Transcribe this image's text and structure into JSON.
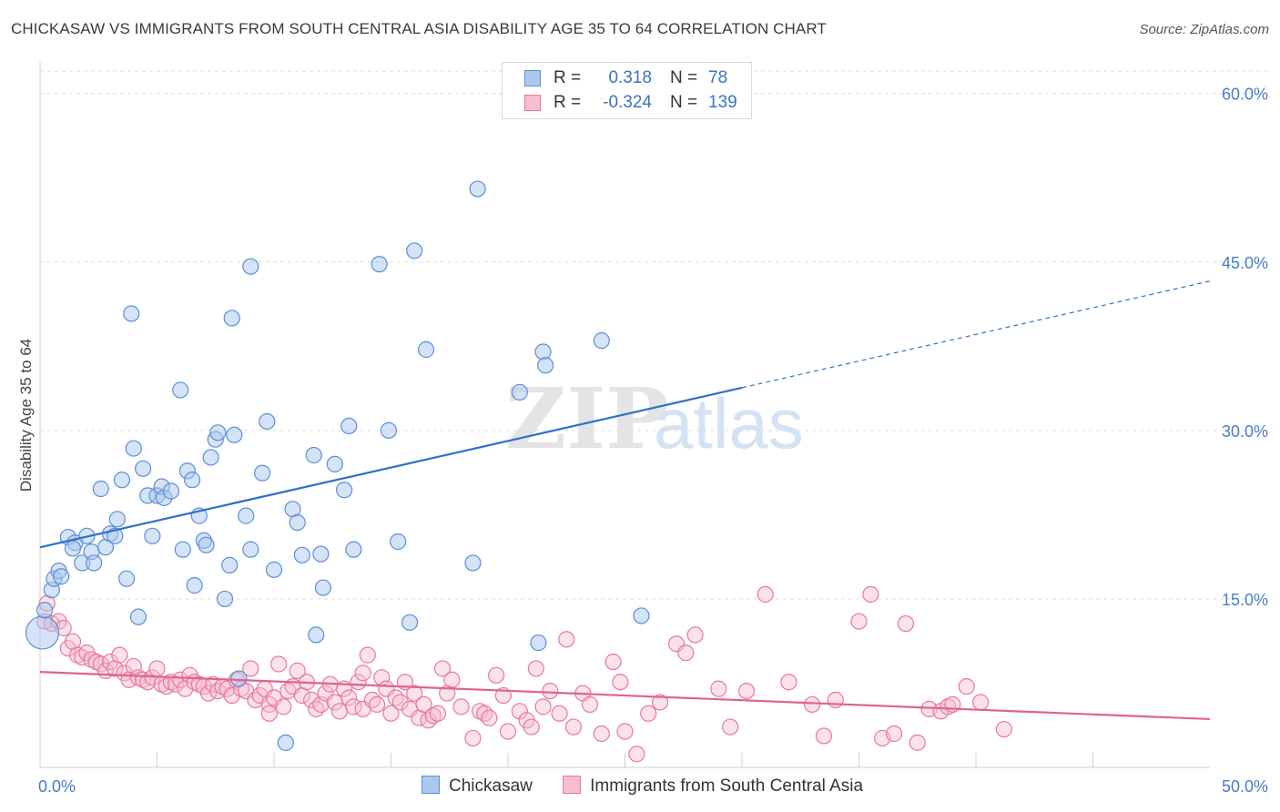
{
  "header": {
    "title": "CHICKASAW VS IMMIGRANTS FROM SOUTH CENTRAL ASIA DISABILITY AGE 35 TO 64 CORRELATION CHART",
    "source": "Source: ZipAtlas.com"
  },
  "watermark": {
    "zip": "ZIP",
    "atlas": "atlas"
  },
  "legend": {
    "rows": [
      {
        "r_label": "R =",
        "r_value": "0.318",
        "n_label": "N =",
        "n_value": "78"
      },
      {
        "r_label": "R =",
        "r_value": "-0.324",
        "n_label": "N =",
        "n_value": "139"
      }
    ]
  },
  "bottom_legend": {
    "series_a": "Chickasaw",
    "series_b": "Immigrants from South Central Asia"
  },
  "colors": {
    "blue_fill": "#aac8ee",
    "blue_stroke": "#5b8fd6",
    "blue_line": "#2f6fcc",
    "pink_fill": "#f6bcd0",
    "pink_stroke": "#e8789c",
    "pink_line": "#e0628e",
    "grid": "#dcdcdc",
    "axis_text": "#4a7cc6"
  },
  "chart_data": {
    "type": "scatter",
    "title": "CHICKASAW VS IMMIGRANTS FROM SOUTH CENTRAL ASIA DISABILITY AGE 35 TO 64 CORRELATION CHART",
    "xlabel": "",
    "ylabel": "Disability Age 35 to 64",
    "xlim": [
      0,
      50
    ],
    "ylim": [
      0,
      62
    ],
    "x_tick_labels": [
      "0.0%",
      "50.0%"
    ],
    "y_ticks": [
      15,
      30,
      45,
      60
    ],
    "y_tick_labels": [
      "15.0%",
      "30.0%",
      "45.0%",
      "60.0%"
    ],
    "grid": true,
    "legend_position": "top-center",
    "series": [
      {
        "name": "Chickasaw",
        "r": 0.318,
        "n": 78,
        "trend": {
          "x0": 0,
          "y0": 19.6,
          "x1": 30,
          "y1": 33.8,
          "dashed_to_x": 50,
          "dashed_to_y": 43.3
        },
        "points": [
          [
            0.1,
            12.0
          ],
          [
            0.5,
            15.8
          ],
          [
            0.6,
            16.8
          ],
          [
            0.8,
            17.5
          ],
          [
            0.9,
            17.0
          ],
          [
            1.2,
            20.5
          ],
          [
            1.5,
            20.0
          ],
          [
            1.4,
            19.5
          ],
          [
            1.8,
            18.2
          ],
          [
            2.0,
            20.6
          ],
          [
            2.2,
            19.2
          ],
          [
            2.3,
            18.2
          ],
          [
            2.6,
            24.8
          ],
          [
            2.8,
            19.6
          ],
          [
            3.0,
            20.8
          ],
          [
            3.2,
            20.6
          ],
          [
            3.3,
            22.1
          ],
          [
            3.5,
            25.6
          ],
          [
            3.7,
            16.8
          ],
          [
            3.9,
            40.4
          ],
          [
            4.0,
            28.4
          ],
          [
            4.2,
            13.4
          ],
          [
            4.4,
            26.6
          ],
          [
            4.6,
            24.2
          ],
          [
            4.8,
            20.6
          ],
          [
            5.0,
            24.2
          ],
          [
            5.2,
            25.0
          ],
          [
            5.3,
            24.0
          ],
          [
            5.6,
            24.6
          ],
          [
            6.0,
            33.6
          ],
          [
            6.1,
            19.4
          ],
          [
            6.3,
            26.4
          ],
          [
            6.5,
            25.6
          ],
          [
            6.6,
            16.2
          ],
          [
            6.8,
            22.4
          ],
          [
            7.0,
            20.2
          ],
          [
            7.1,
            19.8
          ],
          [
            7.3,
            27.6
          ],
          [
            7.5,
            29.2
          ],
          [
            7.6,
            29.8
          ],
          [
            7.9,
            15.0
          ],
          [
            8.1,
            18.0
          ],
          [
            8.2,
            40.0
          ],
          [
            8.3,
            29.6
          ],
          [
            8.5,
            7.9
          ],
          [
            8.8,
            22.4
          ],
          [
            9.0,
            19.4
          ],
          [
            9.0,
            44.6
          ],
          [
            9.5,
            26.2
          ],
          [
            9.7,
            30.8
          ],
          [
            10.0,
            17.6
          ],
          [
            10.5,
            2.2
          ],
          [
            10.8,
            23.0
          ],
          [
            11.0,
            21.8
          ],
          [
            11.2,
            18.9
          ],
          [
            11.7,
            27.8
          ],
          [
            11.8,
            11.8
          ],
          [
            12.0,
            19.0
          ],
          [
            12.1,
            16.0
          ],
          [
            12.6,
            27.0
          ],
          [
            13.0,
            24.7
          ],
          [
            13.2,
            30.4
          ],
          [
            13.4,
            19.4
          ],
          [
            14.5,
            44.8
          ],
          [
            14.9,
            30.0
          ],
          [
            15.3,
            20.1
          ],
          [
            15.8,
            12.9
          ],
          [
            16.0,
            46.0
          ],
          [
            16.5,
            37.2
          ],
          [
            18.5,
            18.2
          ],
          [
            18.7,
            51.5
          ],
          [
            20.5,
            33.4
          ],
          [
            21.3,
            11.1
          ],
          [
            21.5,
            37.0
          ],
          [
            21.6,
            35.8
          ],
          [
            24.0,
            38.0
          ],
          [
            25.7,
            13.5
          ],
          [
            0.2,
            14.0
          ]
        ]
      },
      {
        "name": "Immigrants from South Central Asia",
        "r": -0.324,
        "n": 139,
        "trend": {
          "x0": 0,
          "y0": 8.5,
          "x1": 50,
          "y1": 4.3
        },
        "points": [
          [
            0.2,
            13.0
          ],
          [
            0.3,
            14.6
          ],
          [
            0.5,
            12.8
          ],
          [
            0.8,
            13.0
          ],
          [
            1.0,
            12.4
          ],
          [
            1.2,
            10.6
          ],
          [
            1.4,
            11.2
          ],
          [
            1.6,
            10.0
          ],
          [
            1.8,
            9.8
          ],
          [
            2.0,
            10.2
          ],
          [
            2.2,
            9.6
          ],
          [
            2.4,
            9.4
          ],
          [
            2.6,
            9.2
          ],
          [
            2.8,
            8.6
          ],
          [
            3.0,
            9.4
          ],
          [
            3.2,
            8.8
          ],
          [
            3.4,
            10.0
          ],
          [
            3.6,
            8.4
          ],
          [
            3.8,
            7.8
          ],
          [
            4.0,
            9.0
          ],
          [
            4.2,
            8.0
          ],
          [
            4.4,
            7.8
          ],
          [
            4.6,
            7.6
          ],
          [
            4.8,
            8.0
          ],
          [
            5.0,
            8.8
          ],
          [
            5.2,
            7.4
          ],
          [
            5.4,
            7.2
          ],
          [
            5.6,
            7.6
          ],
          [
            5.8,
            7.4
          ],
          [
            6.0,
            7.8
          ],
          [
            6.2,
            7.0
          ],
          [
            6.4,
            8.2
          ],
          [
            6.6,
            7.6
          ],
          [
            6.8,
            7.4
          ],
          [
            7.0,
            7.2
          ],
          [
            7.2,
            6.6
          ],
          [
            7.4,
            7.4
          ],
          [
            7.6,
            6.8
          ],
          [
            7.8,
            7.2
          ],
          [
            8.0,
            7.0
          ],
          [
            8.2,
            6.4
          ],
          [
            8.4,
            7.8
          ],
          [
            8.6,
            7.0
          ],
          [
            8.8,
            6.8
          ],
          [
            9.0,
            8.8
          ],
          [
            9.2,
            6.0
          ],
          [
            9.4,
            6.4
          ],
          [
            9.6,
            7.0
          ],
          [
            9.8,
            5.6
          ],
          [
            10.0,
            6.2
          ],
          [
            10.2,
            9.2
          ],
          [
            10.4,
            5.4
          ],
          [
            10.6,
            6.8
          ],
          [
            10.8,
            7.2
          ],
          [
            11.0,
            8.6
          ],
          [
            11.2,
            6.4
          ],
          [
            11.4,
            7.6
          ],
          [
            11.6,
            6.0
          ],
          [
            11.8,
            5.2
          ],
          [
            12.0,
            5.6
          ],
          [
            12.2,
            6.6
          ],
          [
            12.4,
            7.4
          ],
          [
            12.6,
            5.8
          ],
          [
            12.8,
            5.0
          ],
          [
            13.0,
            7.0
          ],
          [
            13.2,
            6.2
          ],
          [
            13.4,
            5.4
          ],
          [
            13.6,
            7.6
          ],
          [
            13.8,
            5.2
          ],
          [
            14.0,
            10.0
          ],
          [
            14.2,
            6.0
          ],
          [
            14.4,
            5.6
          ],
          [
            14.6,
            8.0
          ],
          [
            14.8,
            7.0
          ],
          [
            15.0,
            4.8
          ],
          [
            15.2,
            6.2
          ],
          [
            15.4,
            5.8
          ],
          [
            15.6,
            7.6
          ],
          [
            15.8,
            5.2
          ],
          [
            16.0,
            6.6
          ],
          [
            16.2,
            4.4
          ],
          [
            16.4,
            5.6
          ],
          [
            16.6,
            4.2
          ],
          [
            16.8,
            4.6
          ],
          [
            17.0,
            4.8
          ],
          [
            17.2,
            8.8
          ],
          [
            17.4,
            6.6
          ],
          [
            17.6,
            7.8
          ],
          [
            18.0,
            5.4
          ],
          [
            18.5,
            2.6
          ],
          [
            18.8,
            5.0
          ],
          [
            19.0,
            4.8
          ],
          [
            19.2,
            4.4
          ],
          [
            19.5,
            8.2
          ],
          [
            19.8,
            6.4
          ],
          [
            20.0,
            3.2
          ],
          [
            20.5,
            5.0
          ],
          [
            20.8,
            4.2
          ],
          [
            21.0,
            3.6
          ],
          [
            21.2,
            8.8
          ],
          [
            21.5,
            5.4
          ],
          [
            21.8,
            6.8
          ],
          [
            22.2,
            4.8
          ],
          [
            22.5,
            11.4
          ],
          [
            22.8,
            3.6
          ],
          [
            23.2,
            6.6
          ],
          [
            23.5,
            5.6
          ],
          [
            24.0,
            3.0
          ],
          [
            24.5,
            9.4
          ],
          [
            24.8,
            7.6
          ],
          [
            25.0,
            3.2
          ],
          [
            25.5,
            1.2
          ],
          [
            26.0,
            4.8
          ],
          [
            26.5,
            5.8
          ],
          [
            27.2,
            11.0
          ],
          [
            27.6,
            10.2
          ],
          [
            28.0,
            11.8
          ],
          [
            29.0,
            7.0
          ],
          [
            29.5,
            3.6
          ],
          [
            30.2,
            6.8
          ],
          [
            31.0,
            15.4
          ],
          [
            32.0,
            7.6
          ],
          [
            33.0,
            5.6
          ],
          [
            33.5,
            2.8
          ],
          [
            34.0,
            6.0
          ],
          [
            35.0,
            13.0
          ],
          [
            35.5,
            15.4
          ],
          [
            36.0,
            2.6
          ],
          [
            36.5,
            3.0
          ],
          [
            37.0,
            12.8
          ],
          [
            37.5,
            2.2
          ],
          [
            38.0,
            5.2
          ],
          [
            38.5,
            5.0
          ],
          [
            38.8,
            5.4
          ],
          [
            39.0,
            5.6
          ],
          [
            39.6,
            7.2
          ],
          [
            40.2,
            5.8
          ],
          [
            41.2,
            3.4
          ],
          [
            9.8,
            4.8
          ],
          [
            13.8,
            8.4
          ]
        ]
      }
    ]
  }
}
